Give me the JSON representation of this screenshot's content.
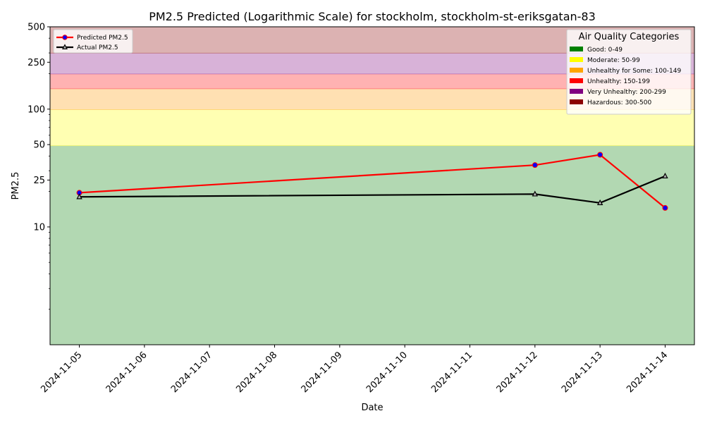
{
  "chart_data": {
    "type": "line",
    "title": "PM2.5 Predicted (Logarithmic Scale) for stockholm, stockholm-st-eriksgatan-83",
    "xlabel": "Date",
    "ylabel": "PM2.5",
    "yscale": "log",
    "ylim": [
      1,
      500
    ],
    "xlim": [
      "2024-11-04",
      "2024-11-14"
    ],
    "x_ticks": [
      "2024-11-05",
      "2024-11-06",
      "2024-11-07",
      "2024-11-08",
      "2024-11-09",
      "2024-11-10",
      "2024-11-11",
      "2024-11-12",
      "2024-11-13",
      "2024-11-14"
    ],
    "y_ticks": [
      {
        "value": 10,
        "label": "10"
      },
      {
        "value": 25,
        "label": "25"
      },
      {
        "value": 50,
        "label": "50"
      },
      {
        "value": 100,
        "label": "100"
      },
      {
        "value": 250,
        "label": "250"
      },
      {
        "value": 500,
        "label": "500"
      }
    ],
    "series": [
      {
        "name": "Predicted PM2.5",
        "color": "#ff0000",
        "marker_color": "#0000ff",
        "marker": "circle",
        "x": [
          "2024-11-05",
          "2024-11-12",
          "2024-11-13",
          "2024-11-14"
        ],
        "values": [
          19.5,
          33.5,
          41,
          14.5
        ]
      },
      {
        "name": "Actual PM2.5",
        "color": "#000000",
        "marker": "triangle",
        "x": [
          "2024-11-05",
          "2024-11-12",
          "2024-11-13",
          "2024-11-14"
        ],
        "values": [
          18,
          19,
          16,
          27
        ]
      }
    ],
    "category_legend": {
      "title": "Air Quality Categories",
      "position": "top-right",
      "items": [
        {
          "label": "Good: 0-49",
          "color": "#008000",
          "band_color": "#b2d8b2",
          "range": [
            0,
            49
          ]
        },
        {
          "label": "Moderate: 50-99",
          "color": "#ffff00",
          "band_color": "#ffffb2",
          "range": [
            49,
            99
          ]
        },
        {
          "label": "Unhealthy for Some: 100-149",
          "color": "#ffa500",
          "band_color": "#ffe0b2",
          "range": [
            99,
            149
          ]
        },
        {
          "label": "Unhealthy: 150-199",
          "color": "#ff0000",
          "band_color": "#ffb2b2",
          "range": [
            149,
            199
          ]
        },
        {
          "label": "Very Unhealthy: 200-299",
          "color": "#800080",
          "band_color": "#d8b2d8",
          "range": [
            199,
            299
          ]
        },
        {
          "label": "Hazardous: 300-500",
          "color": "#8b0000",
          "band_color": "#dcb2b2",
          "range": [
            299,
            500
          ]
        }
      ]
    },
    "series_legend_position": "top-left",
    "grid": false
  }
}
